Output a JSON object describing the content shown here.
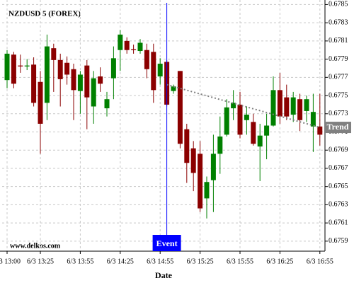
{
  "chart_data": {
    "type": "candlestick",
    "title": "NZDUSD 5 (FOREX)",
    "x_label": "Date",
    "watermark": "www.delkos.com",
    "categories": [
      "6/3 13:00",
      null,
      null,
      null,
      null,
      "6/3 13:25",
      null,
      null,
      null,
      null,
      null,
      "6/3 13:55",
      null,
      null,
      null,
      null,
      null,
      "6/3 14:25",
      null,
      null,
      null,
      null,
      null,
      "6/3 14:55",
      null,
      null,
      null,
      null,
      null,
      "6/3 15:25",
      null,
      null,
      null,
      null,
      null,
      "6/3 15:55",
      null,
      null,
      null,
      null,
      null,
      "6/3 16:25",
      null,
      null,
      null,
      null,
      null,
      "6/3 16:55"
    ],
    "open": [
      0.67767,
      0.67795,
      0.67783,
      0.67782,
      0.67784,
      0.67765,
      0.67742,
      0.67802,
      0.67789,
      0.67786,
      0.67779,
      0.67755,
      0.67783,
      0.67738,
      0.67771,
      0.67736,
      0.67769,
      0.678,
      0.6781,
      0.67801,
      0.67799,
      0.678,
      0.67798,
      0.67771,
      0.67787,
      0.67755,
      0.67777,
      0.67713,
      0.67692,
      0.67686,
      0.67637,
      0.67657,
      0.67686,
      0.67707,
      0.67736,
      0.6774,
      0.67723,
      0.67721,
      0.67694,
      0.67706,
      0.67717,
      0.67756,
      0.67748,
      0.67729,
      0.67746,
      0.67733,
      0.67716,
      0.67716
    ],
    "high": [
      0.678,
      0.67798,
      0.67795,
      0.6779,
      0.67792,
      0.67777,
      0.67817,
      0.67807,
      0.67796,
      0.67793,
      0.67785,
      0.67777,
      0.67789,
      0.67777,
      0.67781,
      0.67754,
      0.67804,
      0.67822,
      0.67814,
      0.67806,
      0.67812,
      0.67807,
      0.67807,
      0.67791,
      0.67789,
      0.67762,
      0.67777,
      0.67719,
      0.677,
      0.677,
      0.67661,
      0.67707,
      0.67727,
      0.67746,
      0.67756,
      0.67754,
      0.67738,
      0.6773,
      0.67719,
      0.6773,
      0.67771,
      0.67775,
      0.67762,
      0.67754,
      0.67752,
      0.6775,
      0.67752,
      0.67752
    ],
    "low": [
      0.67758,
      0.67758,
      0.67775,
      0.67778,
      0.67738,
      0.67686,
      0.67723,
      0.67754,
      0.67738,
      0.67762,
      0.67723,
      0.6773,
      0.67713,
      0.67719,
      0.67754,
      0.67727,
      0.67746,
      0.67777,
      0.67796,
      0.67796,
      0.67796,
      0.67769,
      0.67742,
      0.67762,
      0.67738,
      0.67752,
      0.67692,
      0.67654,
      0.67645,
      0.67622,
      0.67615,
      0.67622,
      0.67664,
      0.67705,
      0.67723,
      0.67703,
      0.67707,
      0.67695,
      0.67656,
      0.6768,
      0.67716,
      0.67719,
      0.67723,
      0.67721,
      0.67711,
      0.67721,
      0.67688,
      0.67695
    ],
    "close": [
      0.67796,
      0.67763,
      0.67782,
      0.67783,
      0.67742,
      0.67719,
      0.67804,
      0.67789,
      0.67768,
      0.67773,
      0.67756,
      0.67773,
      0.67748,
      0.67769,
      0.67763,
      0.67746,
      0.67791,
      0.67817,
      0.678,
      0.678,
      0.67808,
      0.67779,
      0.67756,
      0.67785,
      0.6774,
      0.6776,
      0.67697,
      0.67676,
      0.67665,
      0.67626,
      0.67655,
      0.67686,
      0.67705,
      0.67737,
      0.67742,
      0.67707,
      0.67729,
      0.67697,
      0.67706,
      0.67717,
      0.67756,
      0.67727,
      0.67727,
      0.67748,
      0.67723,
      0.67746,
      0.67732,
      0.67707
    ],
    "up_color": "#008000",
    "down_color": "#8b0000",
    "ylim": [
      0.67579,
      0.67855
    ],
    "yticks": [
      0.6759,
      0.6761,
      0.6763,
      0.6765,
      0.6767,
      0.6769,
      0.6771,
      0.6773,
      0.6775,
      0.6777,
      0.6779,
      0.6781,
      0.6783,
      0.6785
    ],
    "grid": true,
    "trend": {
      "label": "Trend",
      "color": "#808080",
      "values": [
        null,
        null,
        null,
        null,
        null,
        null,
        null,
        null,
        null,
        null,
        null,
        null,
        null,
        null,
        null,
        null,
        null,
        null,
        null,
        null,
        null,
        null,
        null,
        null,
        0.67762,
        null,
        null,
        null,
        null,
        null,
        null,
        null,
        null,
        null,
        null,
        null,
        null,
        null,
        null,
        null,
        null,
        null,
        null,
        null,
        null,
        null,
        null,
        0.67715
      ]
    },
    "event": {
      "label": "Event",
      "index": 24,
      "color": "#0000ff"
    }
  }
}
